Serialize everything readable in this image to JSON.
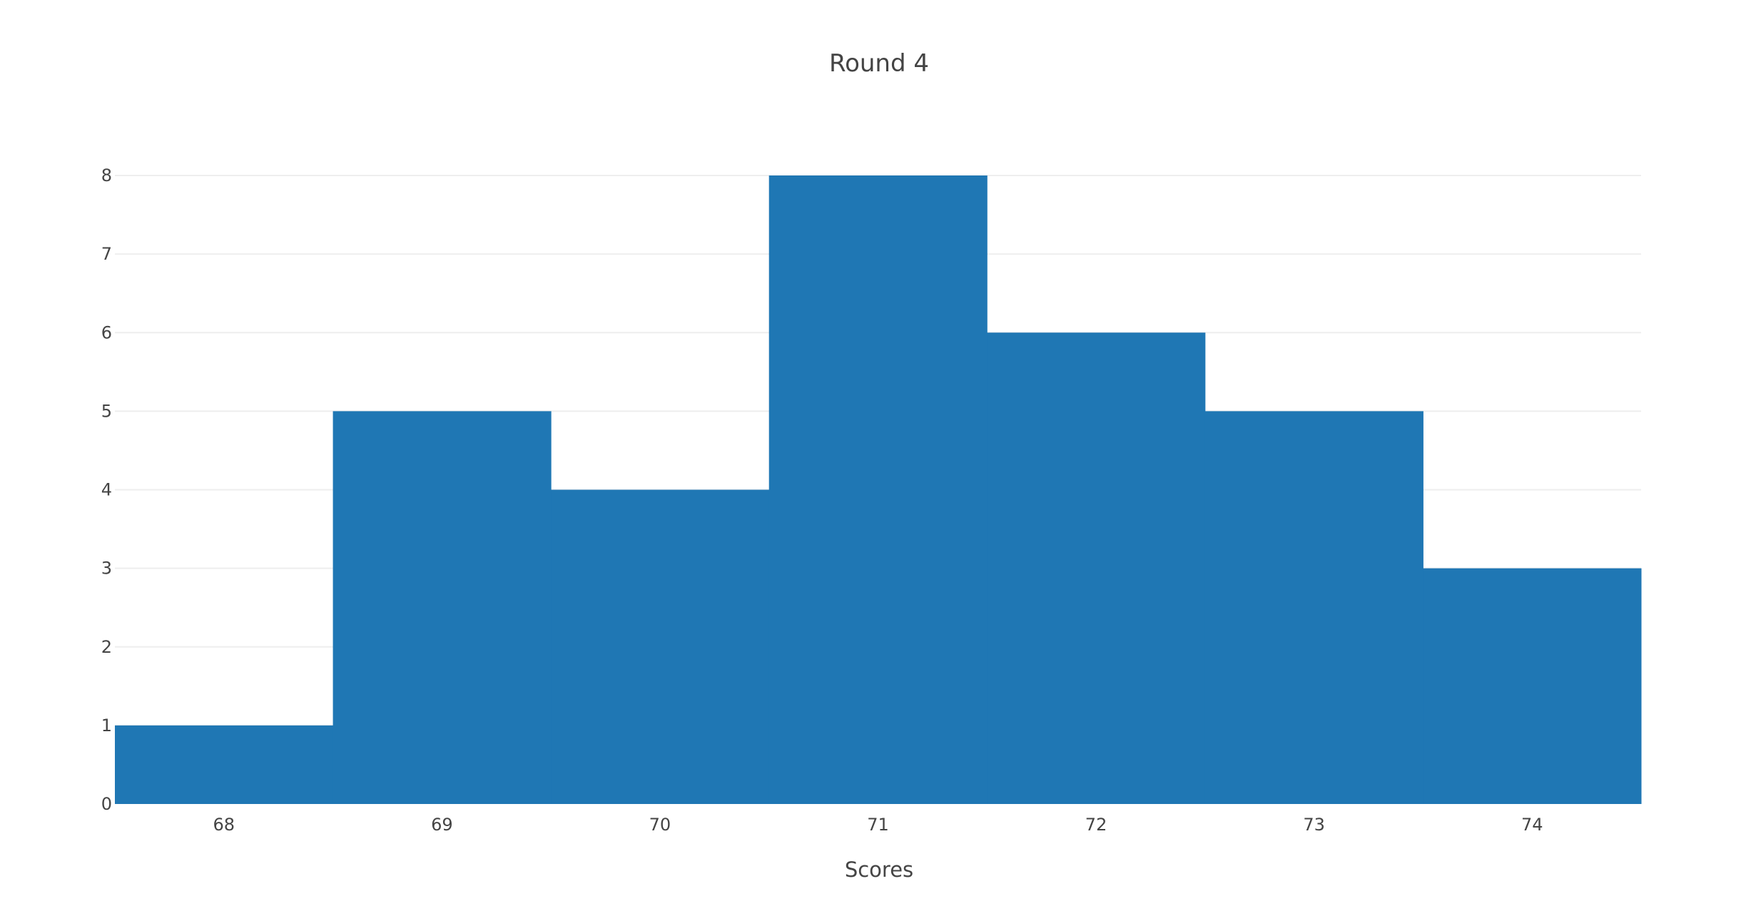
{
  "chart_data": {
    "type": "bar",
    "title": "Round 4",
    "xlabel": "Scores",
    "ylabel": "",
    "categories": [
      "68",
      "69",
      "70",
      "71",
      "72",
      "73",
      "74"
    ],
    "values": [
      1,
      5,
      4,
      8,
      6,
      5,
      3
    ],
    "ylim": [
      0,
      8
    ],
    "yticks": [
      "0",
      "1",
      "2",
      "3",
      "4",
      "5",
      "6",
      "7",
      "8"
    ],
    "grid": true,
    "bar_color": "#1f77b4",
    "grid_color": "#eeeeee",
    "text_color": "#444444"
  }
}
